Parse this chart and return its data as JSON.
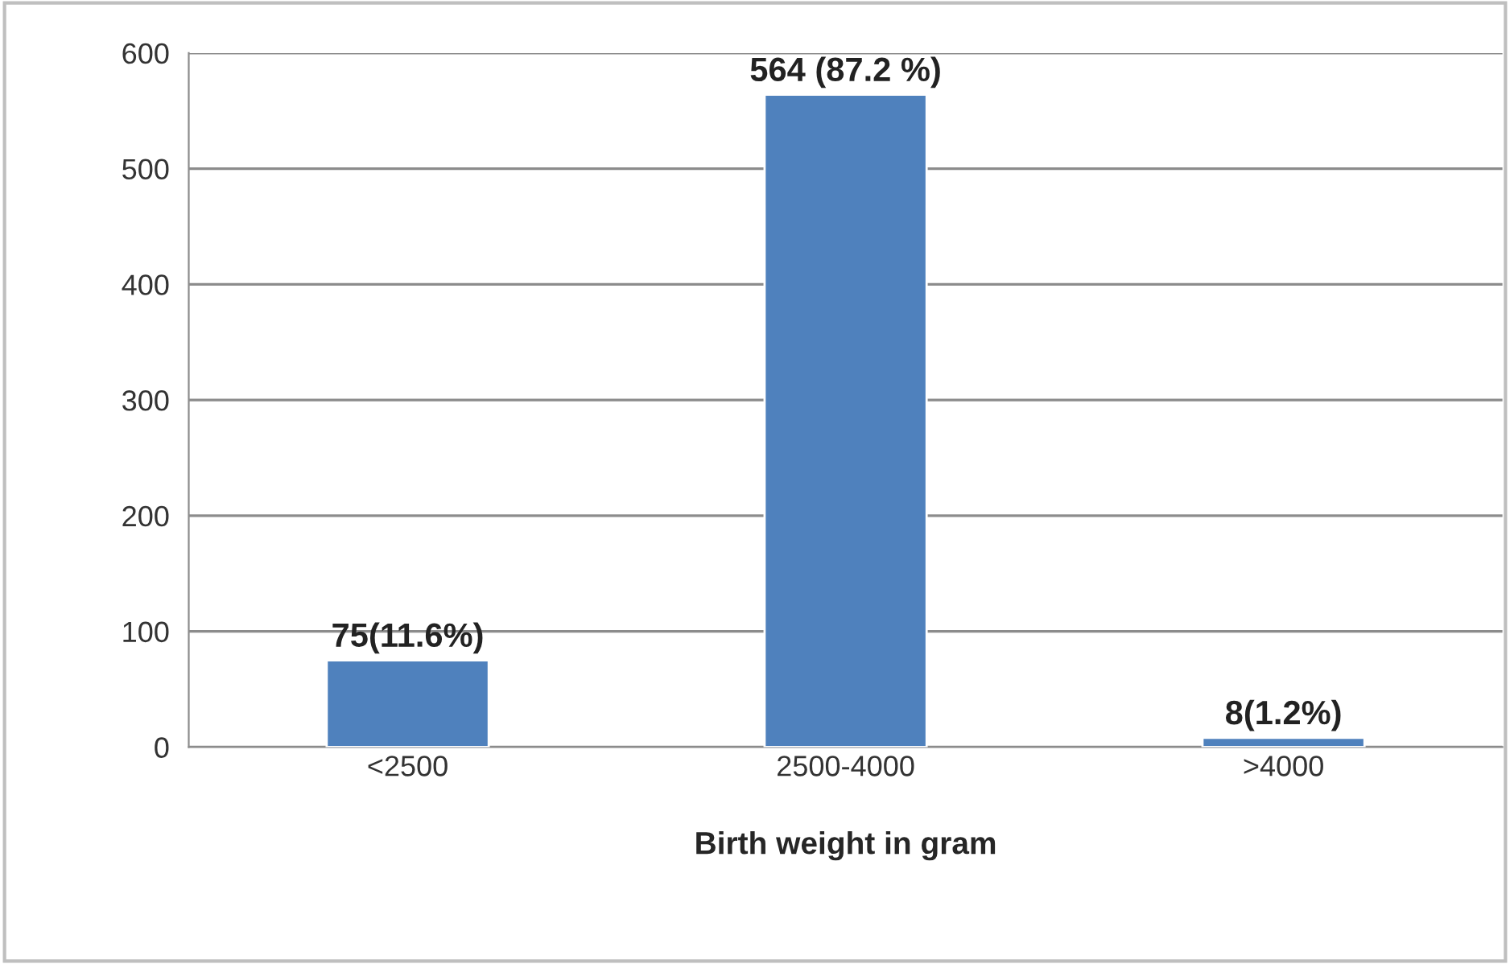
{
  "chart_data": {
    "type": "bar",
    "xlabel": "Birth weight in gram",
    "categories": [
      "<2500",
      "2500-4000",
      ">4000"
    ],
    "values": [
      75,
      564,
      8
    ],
    "value_labels": [
      "75(11.6%)",
      "564 (87.2 %)",
      "8(1.2%)"
    ],
    "color": "#4f81bd",
    "ylim": [
      0,
      600
    ],
    "yticks": [
      0,
      100,
      200,
      300,
      400,
      500,
      600
    ],
    "grid": "y",
    "legend": false
  }
}
